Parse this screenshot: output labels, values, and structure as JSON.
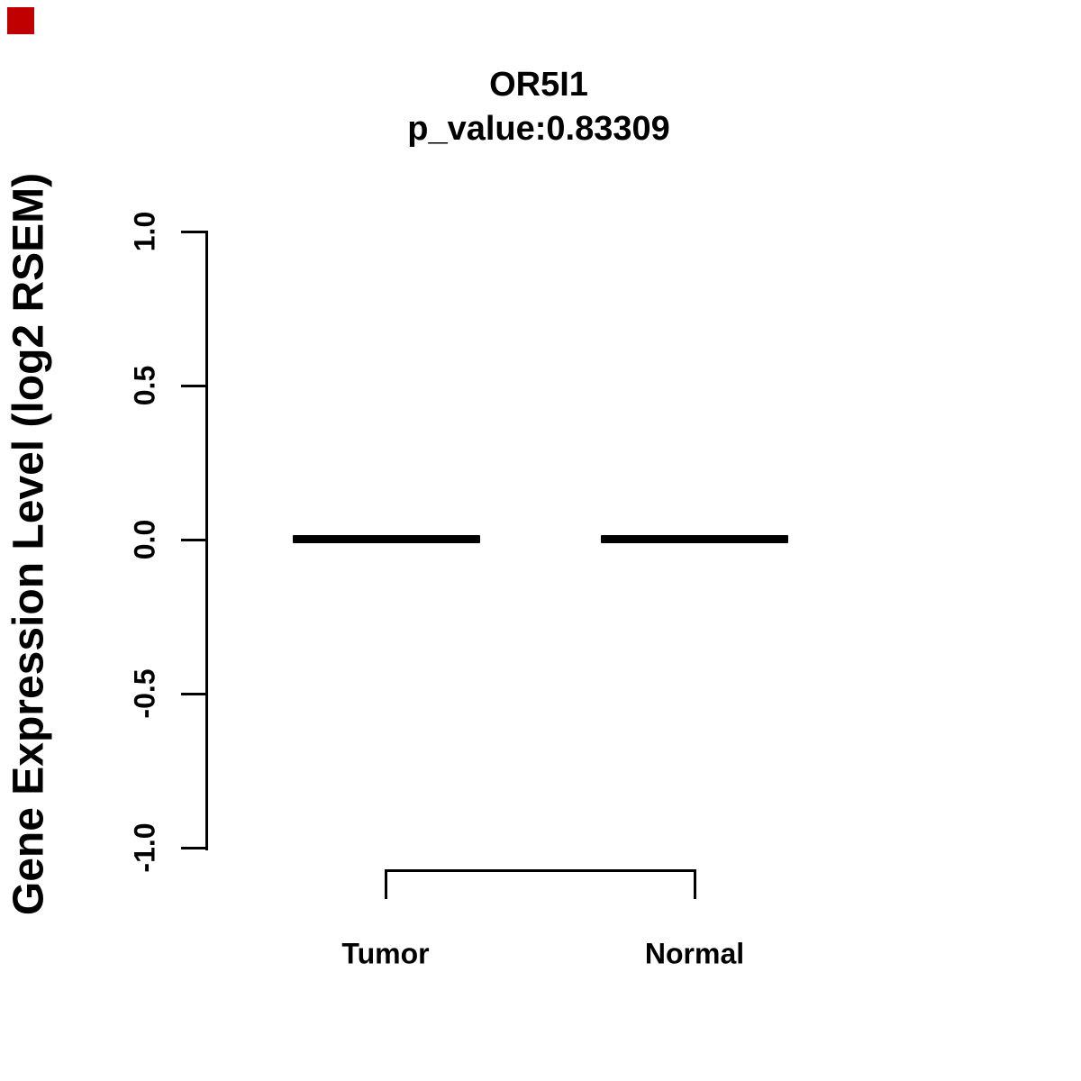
{
  "header": {
    "title": "OR5I1",
    "subtitle": "p_value:0.83309"
  },
  "chart_data": {
    "type": "boxplot",
    "title": "OR5I1",
    "subtitle": "p_value:0.83309",
    "gene": "OR5I1",
    "p_value": 0.83309,
    "ylabel": "Gene Expression Level (log2 RSEM)",
    "xlabel": "",
    "categories": [
      "Tumor",
      "Normal"
    ],
    "series": [
      {
        "name": "Tumor",
        "median": 0.0,
        "q1": 0.0,
        "q3": 0.0,
        "min": 0.0,
        "max": 0.0
      },
      {
        "name": "Normal",
        "median": 0.0,
        "q1": 0.0,
        "q3": 0.0,
        "min": 0.0,
        "max": 0.0
      }
    ],
    "ylim": [
      -1.0,
      1.0
    ],
    "yticks": [
      "1.0",
      "0.5",
      "0.0",
      "-0.5",
      "-1.0"
    ],
    "ytick_values": [
      1.0,
      0.5,
      0.0,
      -0.5,
      -1.0
    ],
    "grid": false,
    "legend_position": "none",
    "colors": {
      "foreground": "#000000",
      "background": "#ffffff",
      "corner_marker": "#c00000"
    }
  }
}
